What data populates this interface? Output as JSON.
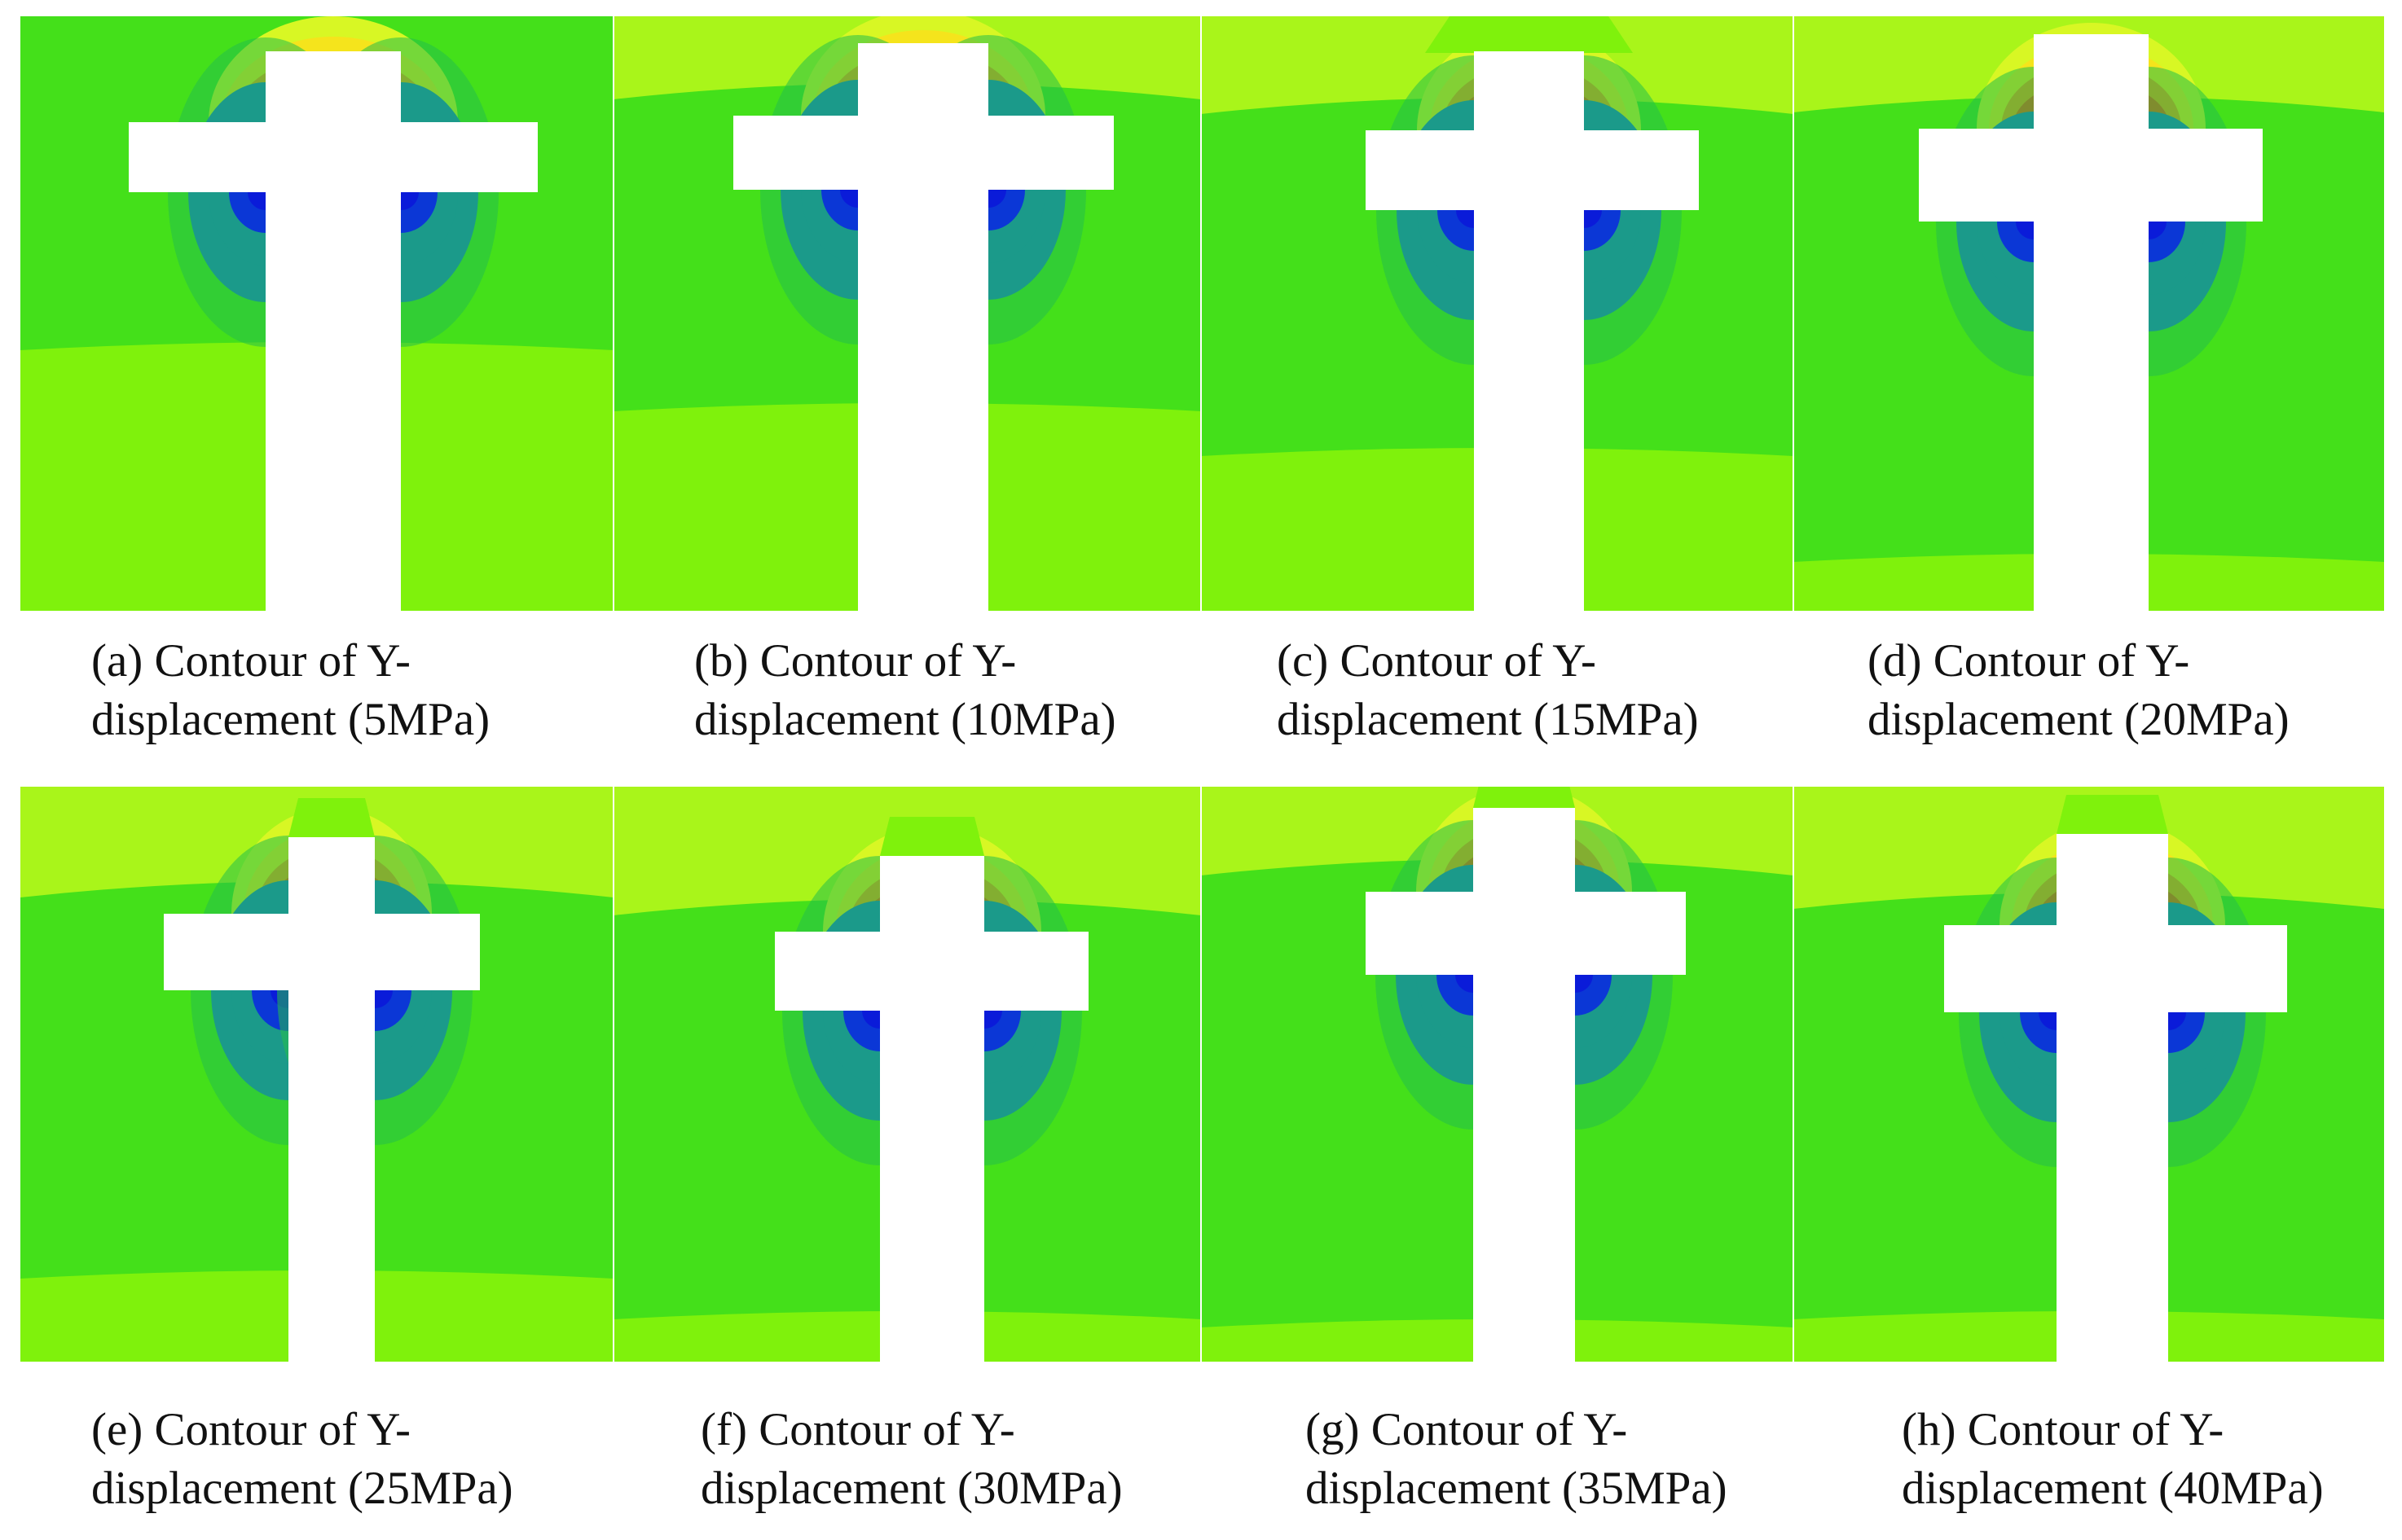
{
  "colors": {
    "bg_green": "#44e01a",
    "lime": "#7ff20c",
    "yellow_green": "#a9f51a",
    "light_yellow": "#d8f724",
    "yellow": "#f5e41c",
    "orange": "#f79a12",
    "red_orange": "#f04e0d",
    "mid_green": "#24c04a",
    "teal": "#1b9a8a",
    "blue": "#0b37d6",
    "deep_blue": "#0a1bd9",
    "opening": "#ffffff"
  },
  "panels": [
    {
      "id": "a",
      "caption_line1": "(a) Contour of Y-",
      "caption_line2": "displacement (5MPa)"
    },
    {
      "id": "b",
      "caption_line1": "(b) Contour of Y-",
      "caption_line2": "displacement (10MPa)"
    },
    {
      "id": "c",
      "caption_line1": "(c) Contour of Y-",
      "caption_line2": "displacement (15MPa)"
    },
    {
      "id": "d",
      "caption_line1": "(d) Contour of Y-",
      "caption_line2": "displacement (20MPa)"
    },
    {
      "id": "e",
      "caption_line1": "(e) Contour of Y-",
      "caption_line2": "displacement (25MPa)"
    },
    {
      "id": "f",
      "caption_line1": "(f) Contour of Y-",
      "caption_line2": "displacement (30MPa)"
    },
    {
      "id": "g",
      "caption_line1": "(g) Contour of Y-",
      "caption_line2": "displacement (35MPa)"
    },
    {
      "id": "h",
      "caption_line1": "(h) Contour of Y-",
      "caption_line2": "displacement (40MPa)"
    }
  ]
}
